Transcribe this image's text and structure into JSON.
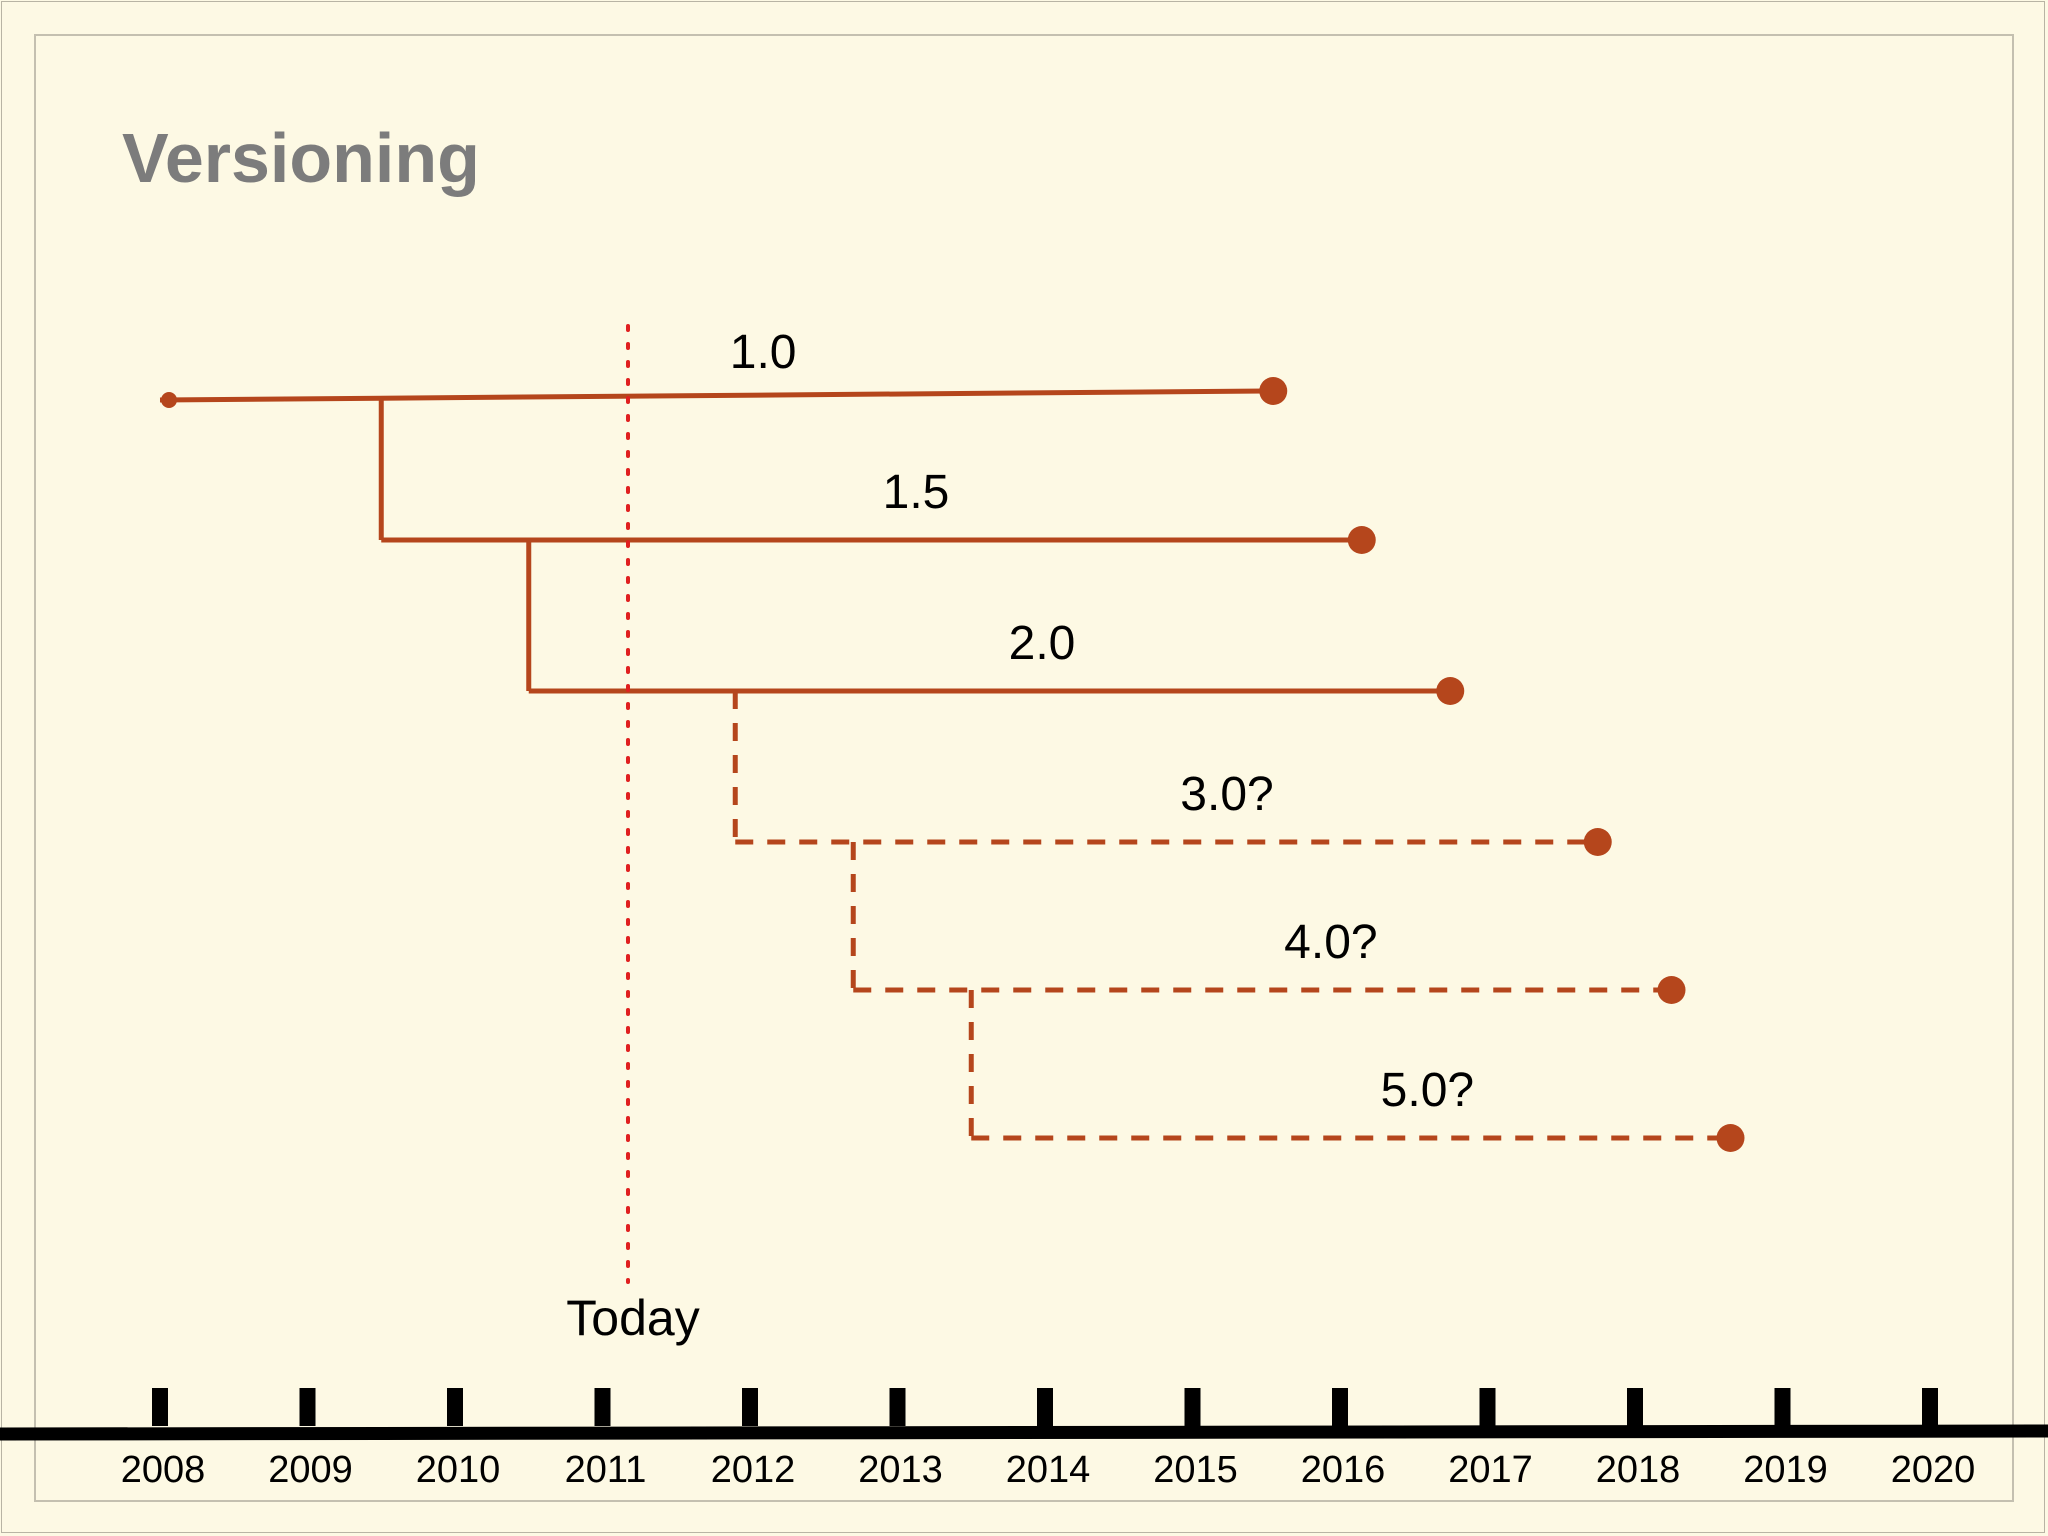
{
  "slide": {
    "title": "Versioning"
  },
  "colors": {
    "branch": "#b5461c",
    "today_line": "#e02020",
    "axis": "#000000",
    "background": "#fdf9e4"
  },
  "today": {
    "label": "Today",
    "year": 2011.2
  },
  "timeline": {
    "years": [
      "2008",
      "2009",
      "2010",
      "2011",
      "2012",
      "2013",
      "2014",
      "2015",
      "2016",
      "2017",
      "2018",
      "2019",
      "2020"
    ]
  },
  "versions": [
    {
      "label": "1.0",
      "start": 2008.0,
      "end": 2015.5,
      "parent_index": null,
      "branch_at": null,
      "planned": false
    },
    {
      "label": "1.5",
      "start": 2009.5,
      "end": 2016.1,
      "parent_index": 0,
      "branch_at": 2009.5,
      "planned": false
    },
    {
      "label": "2.0",
      "start": 2010.5,
      "end": 2016.7,
      "parent_index": 1,
      "branch_at": 2010.5,
      "planned": false
    },
    {
      "label": "3.0?",
      "start": 2011.9,
      "end": 2017.7,
      "parent_index": 2,
      "branch_at": 2011.9,
      "planned": true
    },
    {
      "label": "4.0?",
      "start": 2012.7,
      "end": 2018.2,
      "parent_index": 3,
      "branch_at": 2012.7,
      "planned": true
    },
    {
      "label": "5.0?",
      "start": 2013.5,
      "end": 2018.6,
      "parent_index": 4,
      "branch_at": 2013.5,
      "planned": true
    }
  ]
}
